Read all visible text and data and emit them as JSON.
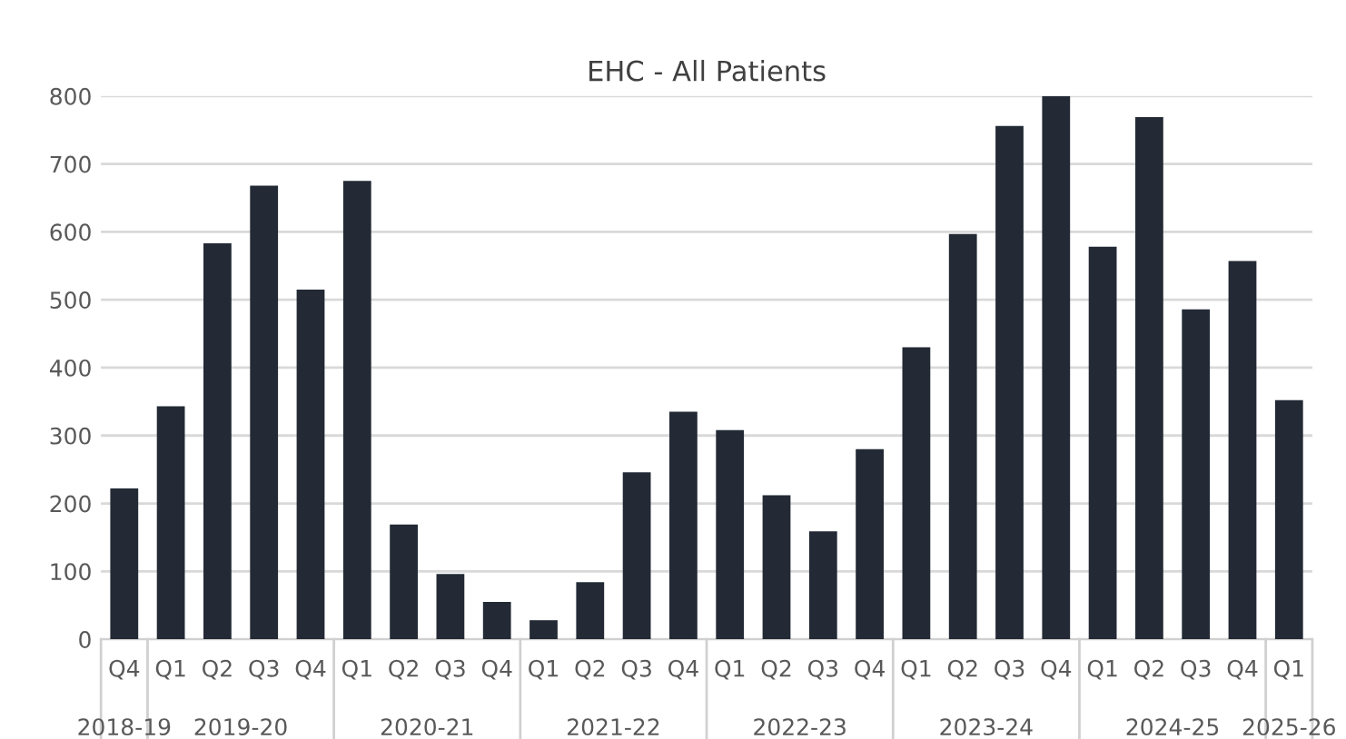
{
  "chart_data": {
    "type": "bar",
    "title": "EHC - All Patients",
    "categories": [
      "Q4",
      "Q1",
      "Q2",
      "Q3",
      "Q4",
      "Q1",
      "Q2",
      "Q3",
      "Q4",
      "Q1",
      "Q2",
      "Q3",
      "Q4",
      "Q1",
      "Q2",
      "Q3",
      "Q4",
      "Q1",
      "Q2",
      "Q3",
      "Q4",
      "Q1",
      "Q2",
      "Q3",
      "Q4",
      "Q1"
    ],
    "values": [
      222,
      343,
      583,
      668,
      515,
      675,
      169,
      96,
      55,
      28,
      84,
      246,
      335,
      308,
      212,
      159,
      280,
      430,
      597,
      756,
      800,
      578,
      769,
      486,
      557,
      352
    ],
    "color": "#232a35",
    "ylim": [
      0,
      800
    ],
    "yticks": [
      0,
      100,
      200,
      300,
      400,
      500,
      600,
      700,
      800
    ],
    "grid": "y",
    "annotations": [
      "2018-19",
      "2019-20",
      "2020-21",
      "2021-22",
      "2022-23",
      "2023-24",
      "2024-25",
      "2025-26"
    ]
  }
}
